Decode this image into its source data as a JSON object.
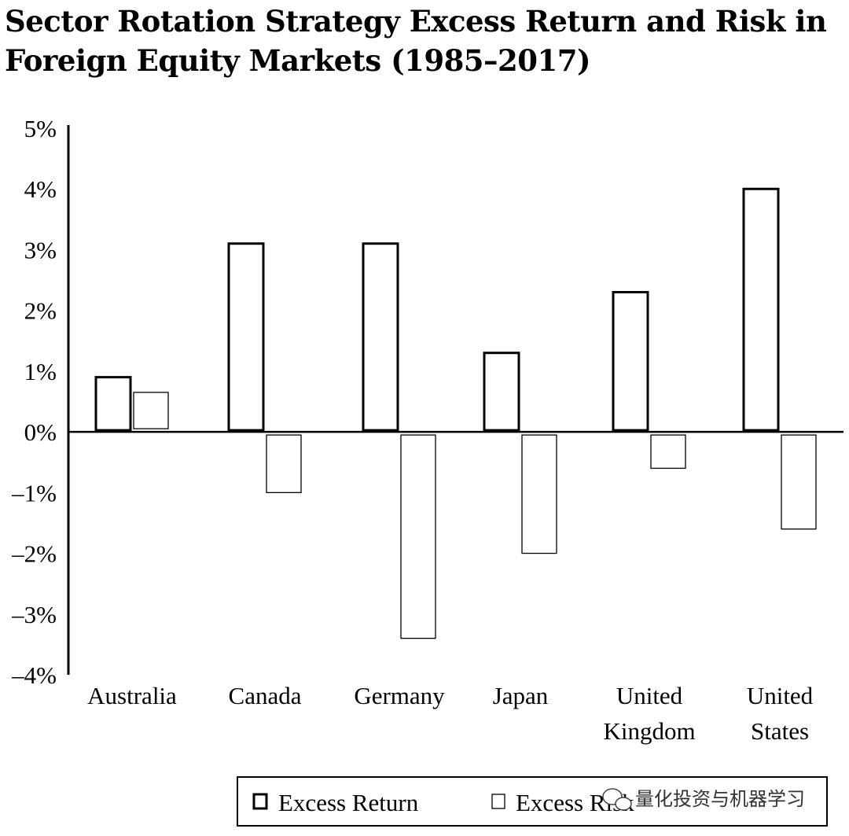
{
  "chart_data": {
    "type": "bar",
    "title": "Sector Rotation Strategy Excess Return and Risk in Foreign Equity Markets (1985–2017)",
    "categories": [
      "Australia",
      "Canada",
      "Germany",
      "Japan",
      "United Kingdom",
      "United States"
    ],
    "category_lines": [
      [
        "Australia"
      ],
      [
        "Canada"
      ],
      [
        "Germany"
      ],
      [
        "Japan"
      ],
      [
        "United",
        "Kingdom"
      ],
      [
        "United",
        "States"
      ]
    ],
    "series": [
      {
        "name": "Excess Return",
        "values": [
          0.9,
          3.1,
          3.1,
          1.3,
          2.3,
          4.0
        ],
        "style": "thick-outline"
      },
      {
        "name": "Excess Risk",
        "values": [
          0.65,
          -1.0,
          -3.4,
          -2.0,
          -0.6,
          -1.6
        ],
        "style": "thin-outline"
      }
    ],
    "ylim": [
      -4,
      5
    ],
    "yticks": [
      5,
      4,
      3,
      2,
      1,
      0,
      -1,
      -2,
      -3,
      -4
    ],
    "ytick_labels": [
      "5%",
      "4%",
      "3%",
      "2%",
      "1%",
      "0%",
      "–1%",
      "–2%",
      "–3%",
      "–4%"
    ],
    "xlabel": "",
    "ylabel": "",
    "grid": false,
    "legend": {
      "placement": "bottom"
    }
  },
  "watermark": {
    "text": "量化投资与机器学习",
    "icon": "wechat-icon"
  },
  "colors": {
    "ink": "#000000",
    "background": "#ffffff"
  }
}
